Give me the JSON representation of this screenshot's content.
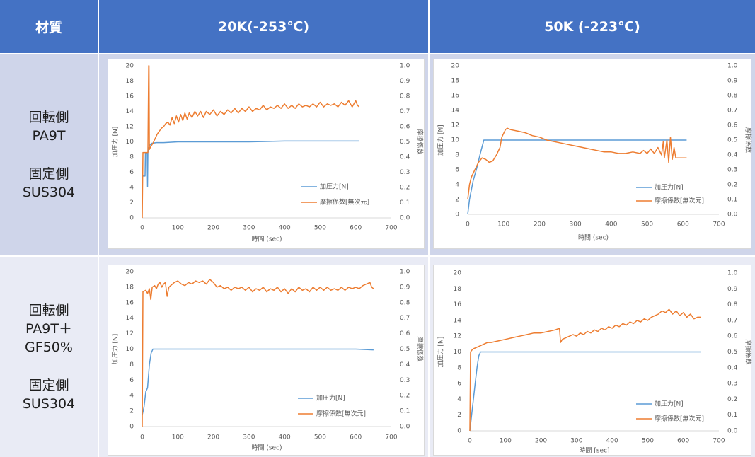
{
  "table": {
    "header": {
      "material": "材質",
      "col_20k": "20K(-253℃)",
      "col_50k": "50K (-223℃)"
    },
    "rows": [
      {
        "rotating_label": "回転側",
        "rotating_material": [
          "PA9T"
        ],
        "fixed_label": "固定側",
        "fixed_material": "SUS304"
      },
      {
        "rotating_label": "回転側",
        "rotating_material": [
          "PA9T＋",
          "GF50%"
        ],
        "fixed_label": "固定側",
        "fixed_material": "SUS304"
      }
    ]
  },
  "colors": {
    "header_bg": "#4472C4",
    "row1_bg": "#CFD5EA",
    "row2_bg": "#E9EBF5",
    "pressure": "#5B9BD5",
    "friction": "#ED7D31"
  },
  "chart_data": [
    {
      "type": "line",
      "xlabel": "時間 (sec)",
      "ylabel": "加圧力 [N]",
      "y2label": "摩擦係数",
      "xlim": [
        0,
        700
      ],
      "xticks": [
        0,
        100,
        200,
        300,
        400,
        500,
        600,
        700
      ],
      "ylim": [
        0,
        20
      ],
      "yticks": [
        0,
        2,
        4,
        6,
        8,
        10,
        12,
        14,
        16,
        18,
        20
      ],
      "y2lim": [
        0,
        1
      ],
      "y2ticks": [
        "0.0",
        "0.1",
        "0.2",
        "0.3",
        "0.4",
        "0.5",
        "0.6",
        "0.7",
        "0.8",
        "0.9",
        "1.0"
      ],
      "grid": false,
      "legend": "bottom-right",
      "series": [
        {
          "name": "加圧力[N]",
          "axis": "left",
          "color": "#5B9BD5",
          "x": [
            0,
            8,
            9,
            14,
            15,
            16,
            18,
            22,
            26,
            40,
            60,
            100,
            150,
            200,
            300,
            400,
            500,
            600,
            610
          ],
          "y": [
            5.5,
            5.5,
            8.5,
            8.5,
            4.1,
            8.6,
            9.2,
            9.6,
            9.8,
            9.9,
            9.9,
            10.0,
            10.0,
            10.0,
            10.0,
            10.1,
            10.1,
            10.1,
            10.1
          ]
        },
        {
          "name": "摩擦係数[無次元]",
          "axis": "right",
          "color": "#ED7D31",
          "x": [
            0,
            2,
            16,
            18,
            19,
            20,
            24,
            30,
            36,
            42,
            48,
            54,
            60,
            66,
            72,
            78,
            84,
            90,
            96,
            102,
            108,
            114,
            120,
            126,
            132,
            140,
            148,
            156,
            164,
            172,
            180,
            190,
            200,
            210,
            220,
            230,
            240,
            250,
            260,
            270,
            280,
            290,
            300,
            310,
            320,
            330,
            340,
            350,
            360,
            370,
            380,
            390,
            400,
            410,
            420,
            430,
            440,
            450,
            460,
            470,
            480,
            490,
            500,
            510,
            520,
            530,
            540,
            550,
            560,
            570,
            580,
            590,
            600,
            605,
            610
          ],
          "y": [
            0.0,
            0.43,
            0.43,
            1.0,
            1.0,
            0.45,
            0.47,
            0.49,
            0.52,
            0.55,
            0.57,
            0.59,
            0.6,
            0.62,
            0.63,
            0.61,
            0.66,
            0.62,
            0.67,
            0.63,
            0.68,
            0.64,
            0.69,
            0.65,
            0.69,
            0.66,
            0.7,
            0.67,
            0.7,
            0.66,
            0.7,
            0.68,
            0.71,
            0.67,
            0.7,
            0.68,
            0.71,
            0.69,
            0.72,
            0.69,
            0.72,
            0.7,
            0.73,
            0.7,
            0.72,
            0.71,
            0.74,
            0.71,
            0.73,
            0.72,
            0.74,
            0.72,
            0.75,
            0.72,
            0.74,
            0.72,
            0.75,
            0.73,
            0.74,
            0.73,
            0.75,
            0.73,
            0.76,
            0.73,
            0.75,
            0.74,
            0.75,
            0.73,
            0.76,
            0.74,
            0.77,
            0.73,
            0.77,
            0.74,
            0.73
          ]
        }
      ]
    },
    {
      "type": "line",
      "xlabel": "時間 (sec)",
      "ylabel": "加圧力 [N]",
      "y2label": "摩擦係数",
      "xlim": [
        0,
        700
      ],
      "xticks": [
        0,
        100,
        200,
        300,
        400,
        500,
        600,
        700
      ],
      "ylim": [
        0,
        20
      ],
      "yticks": [
        0,
        2,
        4,
        6,
        8,
        10,
        12,
        14,
        16,
        18,
        20
      ],
      "y2lim": [
        0,
        1
      ],
      "y2ticks": [
        "0.0",
        "0.1",
        "0.2",
        "0.3",
        "0.4",
        "0.5",
        "0.6",
        "0.7",
        "0.8",
        "0.9",
        "1.0"
      ],
      "grid": false,
      "legend": "bottom-right",
      "series": [
        {
          "name": "加圧力[N]",
          "axis": "left",
          "color": "#5B9BD5",
          "x": [
            0,
            5,
            15,
            25,
            35,
            45,
            100,
            200,
            300,
            400,
            500,
            600,
            610
          ],
          "y": [
            0,
            2,
            4.5,
            6.2,
            8.2,
            10,
            10,
            10,
            10,
            10,
            10,
            10,
            10
          ]
        },
        {
          "name": "摩擦係数[無次元]",
          "axis": "right",
          "color": "#ED7D31",
          "x": [
            0,
            5,
            10,
            20,
            30,
            40,
            50,
            60,
            70,
            80,
            90,
            95,
            105,
            110,
            120,
            140,
            160,
            180,
            200,
            220,
            240,
            260,
            280,
            300,
            320,
            340,
            360,
            380,
            400,
            420,
            440,
            460,
            480,
            490,
            500,
            510,
            520,
            530,
            540,
            545,
            548,
            555,
            560,
            565,
            570,
            575,
            580,
            600,
            610
          ],
          "y": [
            0.1,
            0.2,
            0.25,
            0.3,
            0.35,
            0.38,
            0.37,
            0.35,
            0.36,
            0.4,
            0.45,
            0.52,
            0.57,
            0.58,
            0.57,
            0.56,
            0.55,
            0.53,
            0.52,
            0.5,
            0.49,
            0.48,
            0.47,
            0.46,
            0.45,
            0.44,
            0.43,
            0.42,
            0.42,
            0.41,
            0.41,
            0.42,
            0.41,
            0.43,
            0.41,
            0.44,
            0.41,
            0.45,
            0.4,
            0.49,
            0.38,
            0.5,
            0.35,
            0.52,
            0.37,
            0.45,
            0.38,
            0.38,
            0.38
          ]
        }
      ]
    },
    {
      "type": "line",
      "xlabel": "時間 (sec)",
      "ylabel": "加圧力 [N]",
      "y2label": "摩擦係数",
      "xlim": [
        0,
        700
      ],
      "xticks": [
        0,
        100,
        200,
        300,
        400,
        500,
        600,
        700
      ],
      "ylim": [
        0,
        20
      ],
      "yticks": [
        0,
        2,
        4,
        6,
        8,
        10,
        12,
        14,
        16,
        18,
        20
      ],
      "y2lim": [
        0,
        1
      ],
      "y2ticks": [
        "0.0",
        "0.1",
        "0.2",
        "0.3",
        "0.4",
        "0.5",
        "0.6",
        "0.7",
        "0.8",
        "0.9",
        "1.0"
      ],
      "grid": false,
      "legend": "bottom-right",
      "series": [
        {
          "name": "加圧力[N]",
          "axis": "left",
          "color": "#5B9BD5",
          "x": [
            0,
            5,
            10,
            15,
            20,
            25,
            30,
            40,
            100,
            200,
            300,
            400,
            500,
            600,
            650
          ],
          "y": [
            1.5,
            2.5,
            4.5,
            5.0,
            8.0,
            9.5,
            10,
            10,
            10,
            10,
            10,
            10,
            10,
            10,
            9.9
          ]
        },
        {
          "name": "摩擦係数[無次元]",
          "axis": "right",
          "color": "#ED7D31",
          "x": [
            0,
            2,
            10,
            15,
            20,
            24,
            28,
            35,
            40,
            45,
            50,
            55,
            60,
            65,
            70,
            75,
            80,
            90,
            100,
            110,
            120,
            130,
            140,
            150,
            160,
            170,
            180,
            190,
            200,
            210,
            220,
            230,
            240,
            250,
            260,
            270,
            280,
            290,
            300,
            310,
            320,
            330,
            340,
            350,
            360,
            370,
            380,
            390,
            400,
            410,
            420,
            430,
            440,
            450,
            460,
            470,
            480,
            490,
            500,
            510,
            520,
            530,
            540,
            550,
            560,
            570,
            580,
            590,
            600,
            610,
            620,
            630,
            640,
            645,
            650
          ],
          "y": [
            0.0,
            0.87,
            0.88,
            0.86,
            0.89,
            0.82,
            0.9,
            0.91,
            0.89,
            0.92,
            0.93,
            0.9,
            0.92,
            0.93,
            0.84,
            0.9,
            0.91,
            0.93,
            0.94,
            0.92,
            0.91,
            0.93,
            0.92,
            0.94,
            0.93,
            0.94,
            0.92,
            0.95,
            0.93,
            0.9,
            0.91,
            0.89,
            0.9,
            0.88,
            0.9,
            0.89,
            0.9,
            0.88,
            0.9,
            0.87,
            0.89,
            0.88,
            0.9,
            0.87,
            0.89,
            0.88,
            0.9,
            0.87,
            0.89,
            0.86,
            0.89,
            0.87,
            0.9,
            0.88,
            0.89,
            0.87,
            0.9,
            0.88,
            0.9,
            0.88,
            0.9,
            0.88,
            0.89,
            0.88,
            0.9,
            0.88,
            0.9,
            0.89,
            0.9,
            0.89,
            0.91,
            0.92,
            0.93,
            0.9,
            0.89
          ]
        }
      ]
    },
    {
      "type": "line",
      "xlabel": "時間 [sec]",
      "ylabel": "加圧力 [N]",
      "y2label": "摩擦係数",
      "xlim": [
        0,
        700
      ],
      "xticks": [
        0,
        100,
        200,
        300,
        400,
        500,
        600,
        700
      ],
      "ylim": [
        0,
        20
      ],
      "yticks": [
        0,
        2,
        4,
        6,
        8,
        10,
        12,
        14,
        16,
        18,
        20
      ],
      "y2lim": [
        0,
        1
      ],
      "y2ticks": [
        "0.0",
        "0.1",
        "0.2",
        "0.3",
        "0.4",
        "0.5",
        "0.6",
        "0.7",
        "0.8",
        "0.9",
        "1.0"
      ],
      "grid": false,
      "legend": "bottom-right",
      "series": [
        {
          "name": "加圧力[N]",
          "axis": "left",
          "color": "#5B9BD5",
          "x": [
            0,
            5,
            10,
            15,
            20,
            25,
            30,
            40,
            100,
            200,
            300,
            400,
            500,
            600,
            650
          ],
          "y": [
            0,
            2,
            4,
            6,
            8,
            9.5,
            10,
            10,
            10,
            10,
            10,
            10,
            10,
            10,
            10
          ]
        },
        {
          "name": "摩擦係数[無次元]",
          "axis": "right",
          "color": "#ED7D31",
          "x": [
            0,
            2,
            5,
            10,
            20,
            30,
            40,
            50,
            60,
            80,
            100,
            120,
            140,
            160,
            180,
            200,
            220,
            240,
            252,
            255,
            260,
            270,
            280,
            290,
            300,
            310,
            320,
            330,
            340,
            350,
            360,
            370,
            380,
            390,
            400,
            410,
            420,
            430,
            440,
            450,
            460,
            470,
            480,
            490,
            500,
            510,
            520,
            530,
            540,
            550,
            560,
            570,
            580,
            590,
            600,
            610,
            620,
            630,
            640,
            650
          ],
          "y": [
            0.0,
            0.5,
            0.51,
            0.52,
            0.53,
            0.54,
            0.55,
            0.56,
            0.56,
            0.57,
            0.58,
            0.59,
            0.6,
            0.61,
            0.62,
            0.62,
            0.63,
            0.64,
            0.65,
            0.56,
            0.58,
            0.59,
            0.6,
            0.61,
            0.6,
            0.62,
            0.61,
            0.63,
            0.62,
            0.64,
            0.63,
            0.65,
            0.64,
            0.66,
            0.65,
            0.67,
            0.66,
            0.68,
            0.67,
            0.69,
            0.68,
            0.7,
            0.69,
            0.71,
            0.7,
            0.72,
            0.73,
            0.74,
            0.76,
            0.75,
            0.77,
            0.74,
            0.76,
            0.73,
            0.75,
            0.72,
            0.74,
            0.71,
            0.72,
            0.72
          ]
        }
      ]
    }
  ]
}
